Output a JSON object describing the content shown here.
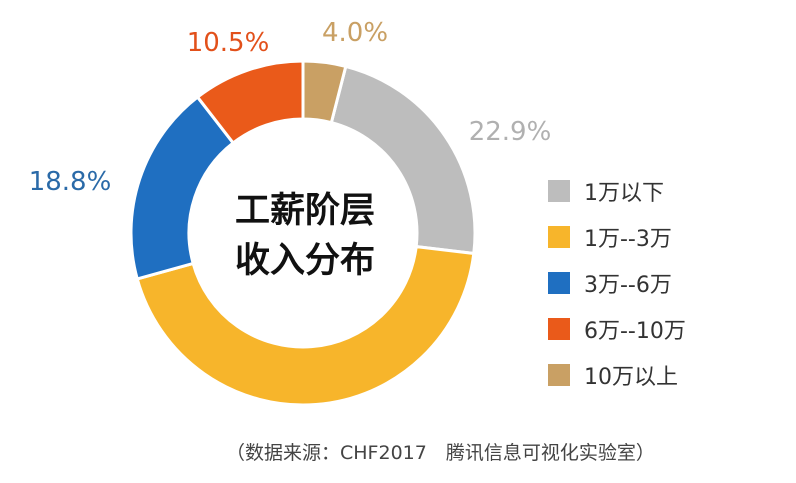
{
  "chart_data": {
    "type": "pie",
    "title": "工薪阶层收入分布",
    "title_lines": [
      "工薪阶层",
      "收入分布"
    ],
    "categories": [
      "1万以下",
      "1万--3万",
      "3万--6万",
      "6万--10万",
      "10万以上"
    ],
    "values": [
      22.9,
      43.8,
      18.8,
      10.5,
      4.0
    ],
    "data_labels": [
      "22.9%",
      "",
      "18.8%",
      "10.5%",
      "4.0%"
    ],
    "colors": [
      "#bdbdbd",
      "#f7b52b",
      "#1f6fc1",
      "#ea5a1a",
      "#c9a064"
    ],
    "label_colors": [
      "#b0b0b0",
      "#f7b52b",
      "#2a6aa8",
      "#e2501a",
      "#c9a064"
    ],
    "legend_position": "right",
    "donut": true
  },
  "source": "（数据来源：CHF2017　腾讯信息可视化实验室）"
}
